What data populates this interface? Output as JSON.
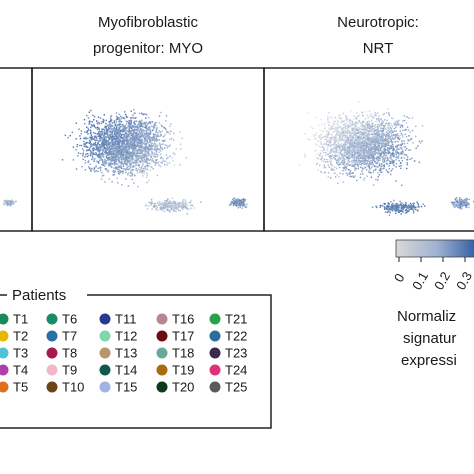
{
  "chart_data": {
    "type": "scatter",
    "panels": [
      {
        "title_lines": [
          "Myofibroblastic",
          "progenitor: MYO"
        ]
      },
      {
        "title_lines": [
          "Neurotropic:",
          "NRT"
        ]
      }
    ],
    "colorbar": {
      "ticks": [
        "0",
        "0.1",
        "0.2",
        "0.3"
      ],
      "label_lines": [
        "Normaliz",
        "signatur",
        "expressi"
      ],
      "low_color": "#d9d9d9",
      "high_color": "#2c5aa0"
    },
    "legend": {
      "title": "Patients",
      "entries": [
        {
          "label": "T1",
          "color": "#1b8a5a"
        },
        {
          "label": "T2",
          "color": "#e6b800"
        },
        {
          "label": "T3",
          "color": "#4ec3d6"
        },
        {
          "label": "T4",
          "color": "#b03fa8"
        },
        {
          "label": "T5",
          "color": "#e07020"
        },
        {
          "label": "T6",
          "color": "#1b8a6a"
        },
        {
          "label": "T7",
          "color": "#2a6fa8"
        },
        {
          "label": "T8",
          "color": "#a8184e"
        },
        {
          "label": "T9",
          "color": "#f2b8c8"
        },
        {
          "label": "T10",
          "color": "#6b4513"
        },
        {
          "label": "T11",
          "color": "#2a3a8c"
        },
        {
          "label": "T12",
          "color": "#7fd6a8"
        },
        {
          "label": "T13",
          "color": "#b8956a"
        },
        {
          "label": "T14",
          "color": "#0f5a4a"
        },
        {
          "label": "T15",
          "color": "#9fb4e0"
        },
        {
          "label": "T16",
          "color": "#b88890"
        },
        {
          "label": "T17",
          "color": "#6a0f0f"
        },
        {
          "label": "T18",
          "color": "#6aa898"
        },
        {
          "label": "T19",
          "color": "#a86a10"
        },
        {
          "label": "T20",
          "color": "#0f3a1a"
        },
        {
          "label": "T21",
          "color": "#2aa04a"
        },
        {
          "label": "T22",
          "color": "#2a6f9a"
        },
        {
          "label": "T23",
          "color": "#3a2a4a"
        },
        {
          "label": "T24",
          "color": "#e0307a"
        },
        {
          "label": "T25",
          "color": "#5a5a5a"
        }
      ]
    }
  }
}
